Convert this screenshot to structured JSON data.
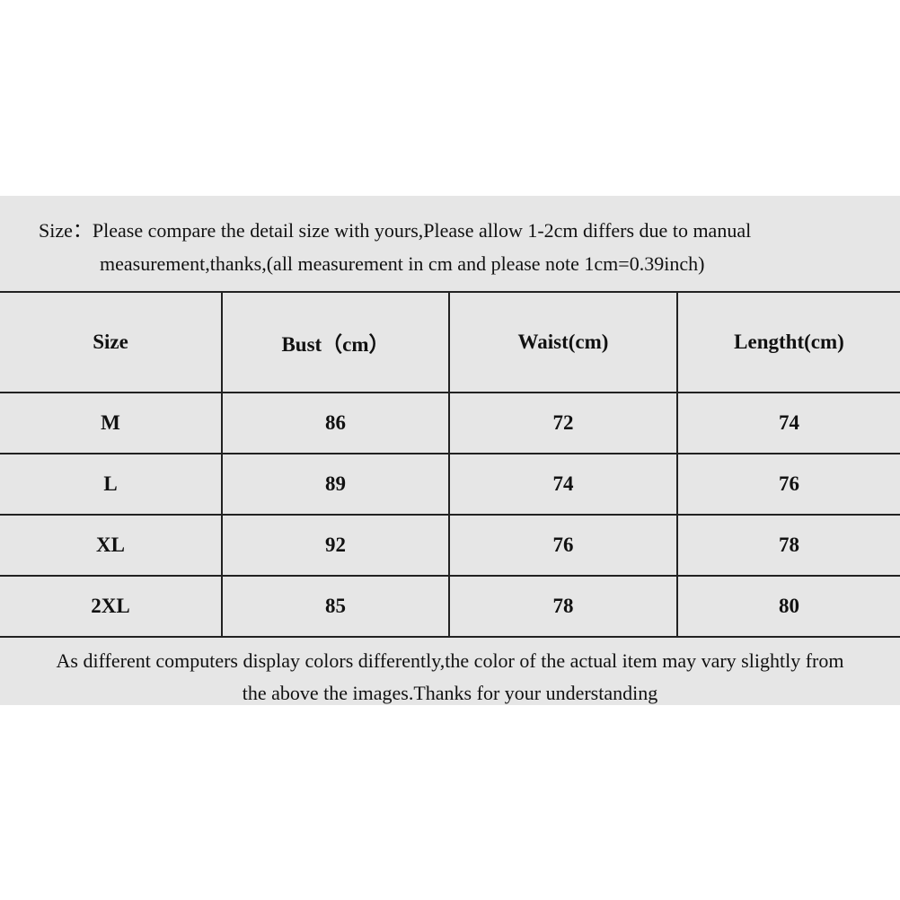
{
  "intro": {
    "line1": "Size：Please compare the detail size with yours,Please allow 1-2cm differs due to manual",
    "line2": "measurement,thanks,(all measurement in cm and please note 1cm=0.39inch)"
  },
  "table": {
    "headers": [
      "Size",
      "Bust（cm）",
      "Waist(cm)",
      "Lengtht(cm)"
    ],
    "rows": [
      [
        "M",
        "86",
        "72",
        "74"
      ],
      [
        "L",
        "89",
        "74",
        "76"
      ],
      [
        "XL",
        "92",
        "76",
        "78"
      ],
      [
        "2XL",
        "85",
        "78",
        "80"
      ]
    ]
  },
  "footer": {
    "line1": "As different computers display colors differently,the color of the actual item may vary slightly from",
    "line2": "the above the images.Thanks for your understanding"
  }
}
